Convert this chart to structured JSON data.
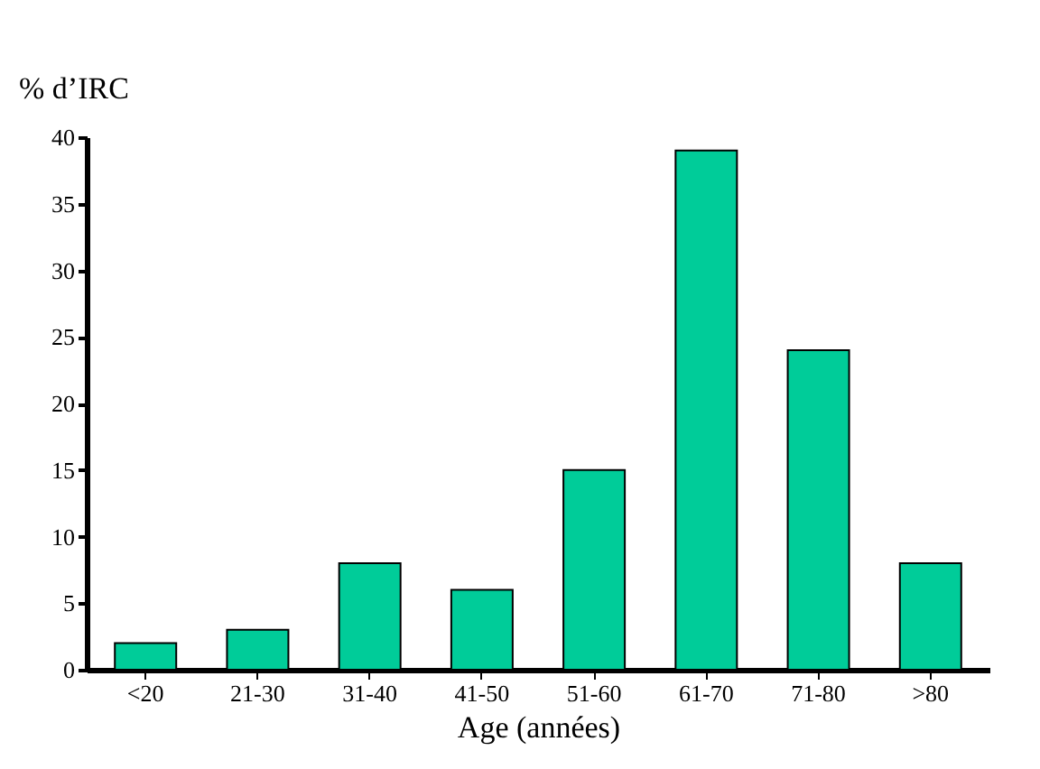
{
  "chart_data": {
    "type": "bar",
    "categories": [
      "<20",
      "21-30",
      "31-40",
      "41-50",
      "51-60",
      "61-70",
      "71-80",
      ">80"
    ],
    "values": [
      2,
      3,
      8,
      6,
      15,
      39,
      24,
      8
    ],
    "color": "#00cc99",
    "xlabel": "Age (années)",
    "ylabel": "% d’IRC",
    "ylim": [
      0,
      40
    ],
    "yticks": [
      0,
      5,
      10,
      15,
      20,
      25,
      30,
      35,
      40
    ],
    "grid": false
  }
}
